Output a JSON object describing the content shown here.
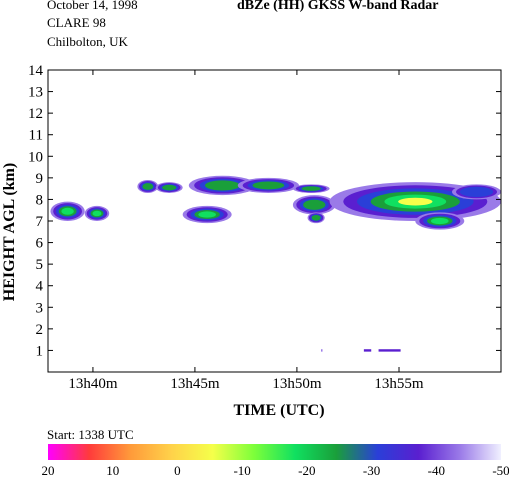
{
  "header": {
    "date": "October 14, 1998",
    "campaign": "CLARE 98",
    "location": "Chilbolton, UK",
    "title": "dBZe (HH)   GKSS  W-band Radar"
  },
  "start_label": "Start: 1338 UTC",
  "colorbar": {
    "ticks": [
      "20",
      "10",
      "0",
      "-10",
      "-20",
      "-30",
      "-40",
      "-50"
    ],
    "stops": [
      "#ff00ff",
      "#ff3b3b",
      "#ff9a3a",
      "#ffd24a",
      "#f5ff4a",
      "#7dff3a",
      "#10e060",
      "#1a9f3a",
      "#2a3fd8",
      "#5a1fd0",
      "#9a7ae8",
      "#f0f0ff"
    ]
  },
  "chart_data": {
    "type": "heatmap",
    "xlabel": "TIME (UTC)",
    "ylabel": "HEIGHT AGL (km)",
    "xlim": [
      13.63,
      14.0
    ],
    "ylim": [
      0,
      14
    ],
    "x_ticks": [
      {
        "value": 13.6667,
        "label": "13h40m"
      },
      {
        "value": 13.75,
        "label": "13h45m"
      },
      {
        "value": 13.8333,
        "label": "13h50m"
      },
      {
        "value": 13.9167,
        "label": "13h55m"
      }
    ],
    "y_ticks": [
      1,
      2,
      3,
      4,
      5,
      6,
      7,
      8,
      9,
      10,
      11,
      12,
      13,
      14
    ],
    "echo_regions": [
      {
        "t0": 13.632,
        "t1": 13.66,
        "h0": 7.0,
        "h1": 7.9,
        "dbz_max": -12
      },
      {
        "t0": 13.66,
        "t1": 13.68,
        "h0": 7.0,
        "h1": 7.7,
        "dbz_max": -15
      },
      {
        "t0": 13.703,
        "t1": 13.72,
        "h0": 8.3,
        "h1": 8.9,
        "dbz_max": -18
      },
      {
        "t0": 13.718,
        "t1": 13.74,
        "h0": 8.3,
        "h1": 8.8,
        "dbz_max": -22
      },
      {
        "t0": 13.745,
        "t1": 13.8,
        "h0": 8.2,
        "h1": 9.1,
        "dbz_max": -18
      },
      {
        "t0": 13.785,
        "t1": 13.835,
        "h0": 8.3,
        "h1": 9.0,
        "dbz_max": -20
      },
      {
        "t0": 13.83,
        "t1": 13.86,
        "h0": 8.3,
        "h1": 8.7,
        "dbz_max": -20
      },
      {
        "t0": 13.74,
        "t1": 13.78,
        "h0": 6.9,
        "h1": 7.7,
        "dbz_max": -14
      },
      {
        "t0": 13.83,
        "t1": 13.865,
        "h0": 7.3,
        "h1": 8.2,
        "dbz_max": -20
      },
      {
        "t0": 13.842,
        "t1": 13.856,
        "h0": 6.9,
        "h1": 7.4,
        "dbz_max": -20
      },
      {
        "t0": 13.86,
        "t1": 14.0,
        "h0": 7.0,
        "h1": 8.8,
        "dbz_max": -8
      },
      {
        "t0": 13.93,
        "t1": 13.97,
        "h0": 6.6,
        "h1": 7.4,
        "dbz_max": -15
      },
      {
        "t0": 13.96,
        "t1": 14.0,
        "h0": 8.0,
        "h1": 8.7,
        "dbz_max": -25
      }
    ],
    "low_echoes": [
      {
        "t0": 13.888,
        "t1": 13.894,
        "h": 1.0,
        "dbz": -38
      },
      {
        "t0": 13.9,
        "t1": 13.918,
        "h": 1.0,
        "dbz": -40
      },
      {
        "t0": 13.853,
        "t1": 13.854,
        "h": 1.0,
        "dbz": -45
      }
    ]
  }
}
